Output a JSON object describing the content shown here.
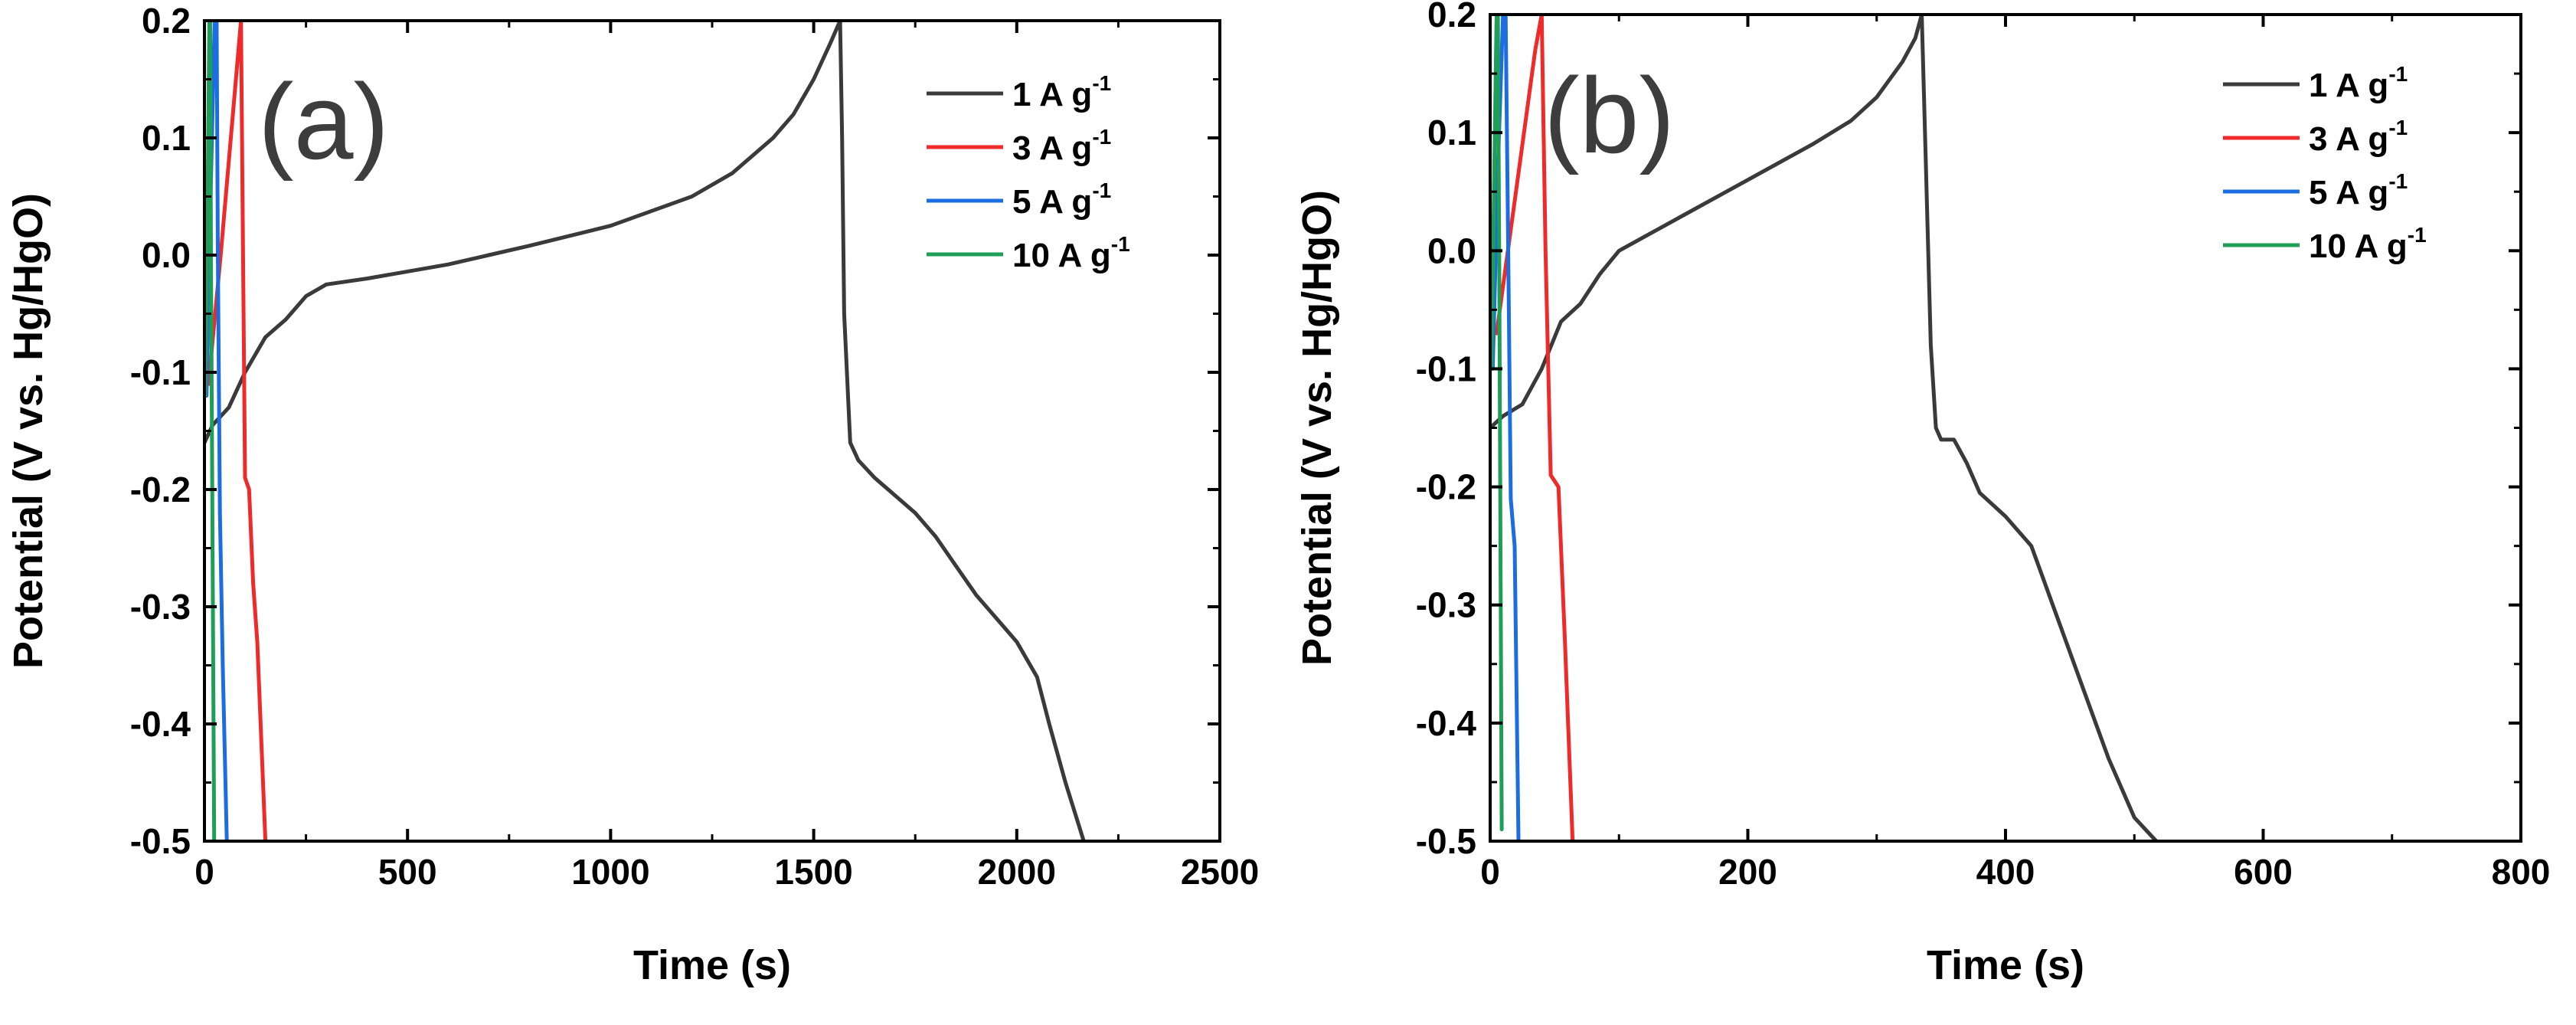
{
  "chart_data": [
    {
      "type": "line",
      "panel_label": "(a)",
      "xlabel": "Time (s)",
      "ylabel": "Potential (V vs. Hg/HgO)",
      "xlim": [
        0,
        2500
      ],
      "ylim": [
        -0.5,
        0.2
      ],
      "xticks": [
        0,
        500,
        1000,
        1500,
        2000,
        2500
      ],
      "yticks": [
        -0.5,
        -0.4,
        -0.3,
        -0.2,
        -0.1,
        0.0,
        0.1,
        0.2
      ],
      "xtick_labels": [
        "0",
        "500",
        "1000",
        "1500",
        "2000",
        "2500"
      ],
      "ytick_labels": [
        "-0.5",
        "-0.4",
        "-0.3",
        "-0.2",
        "-0.1",
        "0.0",
        "0.1",
        "0.2"
      ],
      "legend_position": "top-right",
      "series": [
        {
          "name": "1 A g-1",
          "label_main": "1 A g",
          "label_sup": "-1",
          "color": "#3a3a3a",
          "x": [
            0,
            20,
            60,
            100,
            150,
            200,
            250,
            300,
            400,
            600,
            800,
            1000,
            1200,
            1300,
            1400,
            1450,
            1500,
            1540,
            1565,
            1570,
            1575,
            1590,
            1610,
            1650,
            1700,
            1750,
            1800,
            1850,
            1900,
            1950,
            2000,
            2050,
            2080,
            2120,
            2165
          ],
          "y": [
            -0.16,
            -0.145,
            -0.13,
            -0.1,
            -0.07,
            -0.055,
            -0.035,
            -0.025,
            -0.02,
            -0.008,
            0.008,
            0.025,
            0.05,
            0.07,
            0.1,
            0.12,
            0.15,
            0.18,
            0.2,
            0.1,
            -0.05,
            -0.16,
            -0.175,
            -0.19,
            -0.205,
            -0.22,
            -0.24,
            -0.265,
            -0.29,
            -0.31,
            -0.33,
            -0.36,
            -0.4,
            -0.45,
            -0.5
          ]
        },
        {
          "name": "3 A g-1",
          "label_main": "3 A g",
          "label_sup": "-1",
          "color": "#ee2a2a",
          "x": [
            10,
            40,
            70,
            90,
            95,
            100,
            110,
            120,
            130,
            150
          ],
          "y": [
            -0.11,
            0.0,
            0.12,
            0.2,
            0.0,
            -0.19,
            -0.2,
            -0.28,
            -0.33,
            -0.5
          ]
        },
        {
          "name": "5 A g-1",
          "label_main": "5 A g",
          "label_sup": "-1",
          "color": "#1c6de0",
          "x": [
            5,
            15,
            25,
            30,
            33,
            38,
            45,
            55
          ],
          "y": [
            -0.12,
            0.05,
            0.2,
            0.2,
            0.0,
            -0.22,
            -0.35,
            -0.5
          ]
        },
        {
          "name": "10 A g-1",
          "label_main": "10 A g",
          "label_sup": "-1",
          "color": "#1f9e57",
          "x": [
            2,
            8,
            12,
            14,
            16,
            20,
            24
          ],
          "y": [
            -0.12,
            0.05,
            0.2,
            0.2,
            0.0,
            -0.25,
            -0.5
          ]
        }
      ]
    },
    {
      "type": "line",
      "panel_label": "(b)",
      "xlabel": "Time (s)",
      "ylabel": "Potential (V vs. Hg/HgO)",
      "xlim": [
        0,
        800
      ],
      "ylim": [
        -0.5,
        0.2
      ],
      "xticks": [
        0,
        200,
        400,
        600,
        800
      ],
      "yticks": [
        -0.5,
        -0.4,
        -0.3,
        -0.2,
        -0.1,
        0.0,
        0.1,
        0.2
      ],
      "xtick_labels": [
        "0",
        "200",
        "400",
        "600",
        "800"
      ],
      "ytick_labels": [
        "-0.5",
        "-0.4",
        "-0.3",
        "-0.2",
        "-0.1",
        "0.0",
        "0.1",
        "0.2"
      ],
      "legend_position": "top-right",
      "series": [
        {
          "name": "1 A g-1",
          "label_main": "1 A g",
          "label_sup": "-1",
          "color": "#3a3a3a",
          "x": [
            0,
            10,
            25,
            40,
            55,
            70,
            85,
            100,
            150,
            200,
            250,
            280,
            300,
            320,
            330,
            335,
            338,
            342,
            346,
            350,
            360,
            370,
            380,
            400,
            420,
            440,
            460,
            480,
            500,
            517
          ],
          "y": [
            -0.15,
            -0.14,
            -0.13,
            -0.1,
            -0.06,
            -0.045,
            -0.02,
            0.0,
            0.03,
            0.06,
            0.09,
            0.11,
            0.13,
            0.16,
            0.18,
            0.2,
            0.08,
            -0.08,
            -0.15,
            -0.16,
            -0.16,
            -0.18,
            -0.205,
            -0.225,
            -0.25,
            -0.31,
            -0.37,
            -0.43,
            -0.48,
            -0.5
          ]
        },
        {
          "name": "3 A g-1",
          "label_main": "3 A g",
          "label_sup": "-1",
          "color": "#ee2a2a",
          "x": [
            5,
            20,
            35,
            40,
            43,
            47,
            53,
            58,
            64
          ],
          "y": [
            -0.07,
            0.05,
            0.17,
            0.2,
            0.0,
            -0.19,
            -0.2,
            -0.33,
            -0.5
          ]
        },
        {
          "name": "5 A g-1",
          "label_main": "5 A g",
          "label_sup": "-1",
          "color": "#1c6de0",
          "x": [
            2,
            6,
            10,
            12,
            14,
            16,
            19,
            22
          ],
          "y": [
            -0.1,
            0.07,
            0.2,
            0.2,
            0.0,
            -0.21,
            -0.25,
            -0.5
          ]
        },
        {
          "name": "10 A g-1",
          "label_main": "10 A g",
          "label_sup": "-1",
          "color": "#1f9e57",
          "x": [
            1,
            3,
            5,
            6,
            7,
            9
          ],
          "y": [
            -0.1,
            0.05,
            0.2,
            0.2,
            0.0,
            -0.49
          ]
        }
      ]
    }
  ]
}
